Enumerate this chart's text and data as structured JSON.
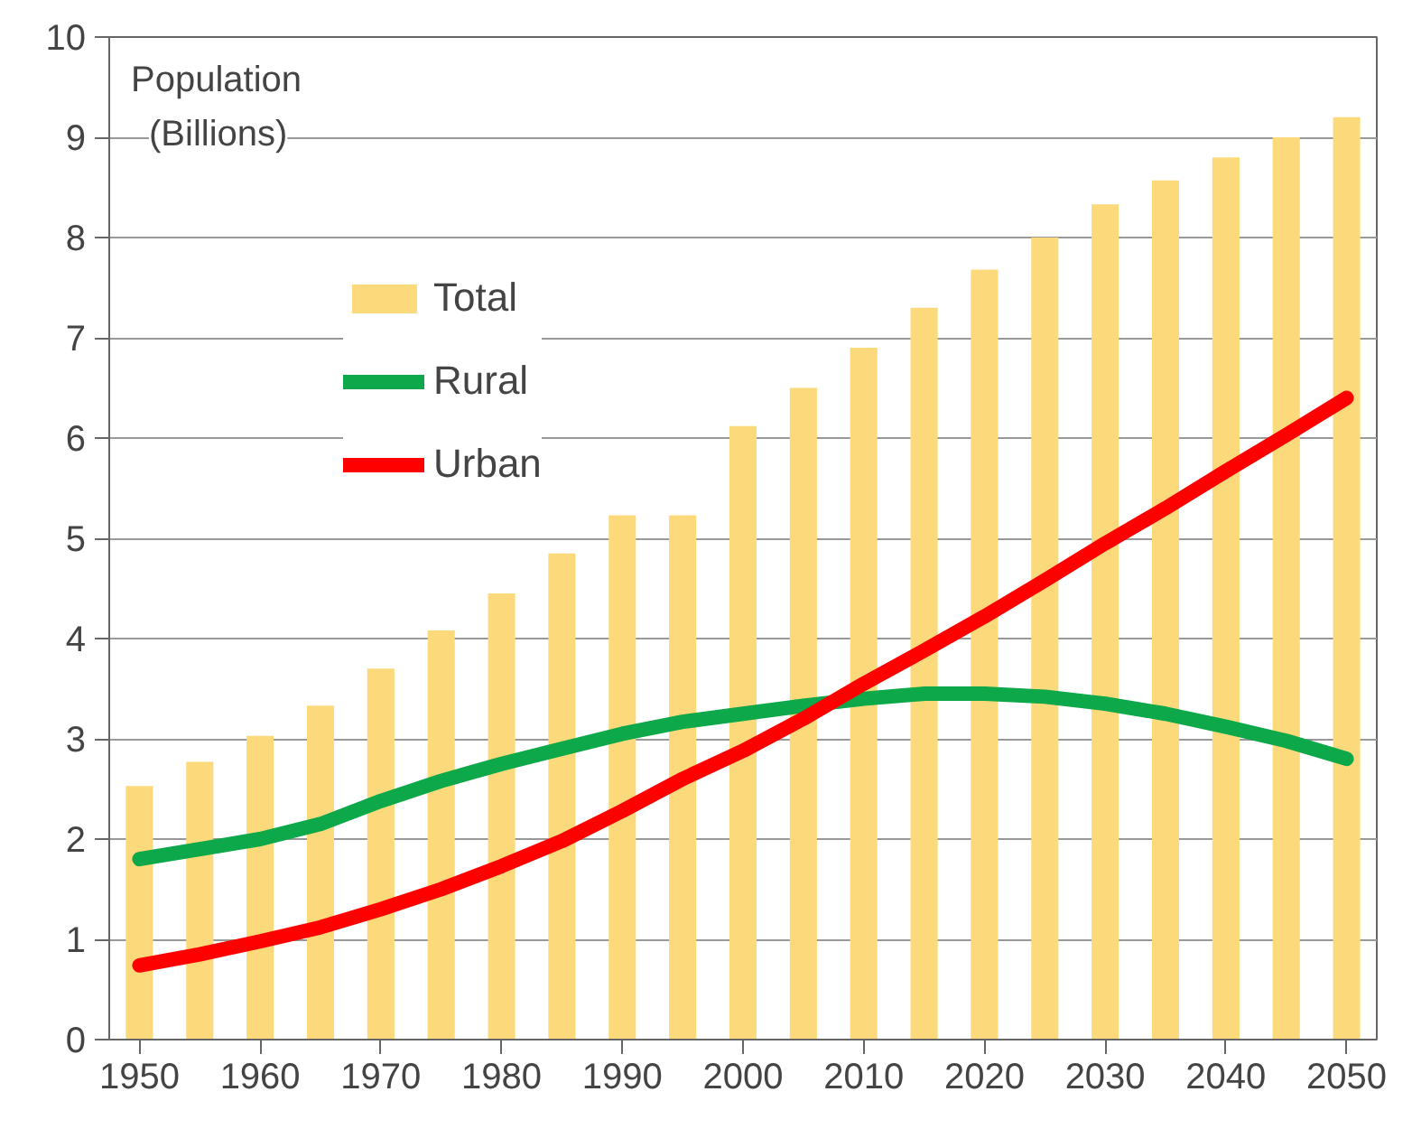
{
  "chart_data": {
    "type": "bar",
    "ylabel": "Population (Billions)",
    "x": [
      1950,
      1955,
      1960,
      1965,
      1970,
      1975,
      1980,
      1985,
      1990,
      1995,
      2000,
      2005,
      2010,
      2015,
      2020,
      2025,
      2030,
      2035,
      2040,
      2045,
      2050
    ],
    "series": [
      {
        "name": "Total",
        "color": "#fcd97a",
        "values": [
          2.53,
          2.77,
          3.03,
          3.33,
          3.7,
          4.08,
          4.45,
          4.85,
          5.23,
          5.23,
          6.12,
          6.5,
          6.9,
          7.3,
          7.68,
          8.0,
          8.33,
          8.57,
          8.8,
          9.0,
          9.2
        ]
      },
      {
        "name": "Rural",
        "type": "line",
        "color": "#0ca84a",
        "values": [
          1.8,
          1.9,
          2.0,
          2.15,
          2.38,
          2.58,
          2.75,
          2.9,
          3.05,
          3.17,
          3.25,
          3.33,
          3.4,
          3.45,
          3.45,
          3.42,
          3.35,
          3.25,
          3.12,
          2.98,
          2.8
        ]
      },
      {
        "name": "Urban",
        "type": "line",
        "color": "#ff0000",
        "values": [
          0.74,
          0.85,
          0.98,
          1.12,
          1.3,
          1.5,
          1.73,
          1.98,
          2.28,
          2.6,
          2.88,
          3.2,
          3.55,
          3.88,
          4.22,
          4.58,
          4.95,
          5.3,
          5.67,
          6.03,
          6.4
        ]
      }
    ],
    "xlim": [
      1947.5,
      2052.5
    ],
    "xticks": [
      1950,
      1960,
      1970,
      1980,
      1990,
      2000,
      2010,
      2020,
      2030,
      2040,
      2050
    ],
    "ylim": [
      0,
      10
    ],
    "yticks": [
      0,
      1,
      2,
      3,
      4,
      5,
      6,
      7,
      8,
      9,
      10
    ],
    "grid": "y",
    "legend": "top left",
    "line_style": "solid",
    "marker": "none"
  }
}
